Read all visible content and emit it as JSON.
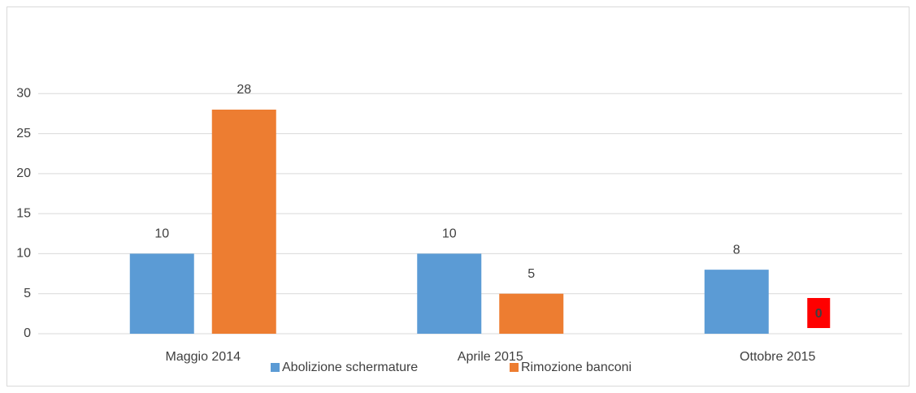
{
  "chart_data": {
    "type": "bar",
    "categories": [
      "Maggio 2014",
      "Aprile 2015",
      "Ottobre 2015"
    ],
    "series": [
      {
        "name": "Abolizione schermature",
        "color": "#5b9bd5",
        "values": [
          10,
          10,
          8
        ]
      },
      {
        "name": "Rimozione banconi",
        "color": "#ed7d31",
        "values": [
          28,
          5,
          0
        ]
      }
    ],
    "ylim": [
      0,
      35
    ],
    "yticks": [
      0,
      5,
      10,
      15,
      20,
      25,
      30
    ],
    "grid": true,
    "legend": "bottom"
  }
}
